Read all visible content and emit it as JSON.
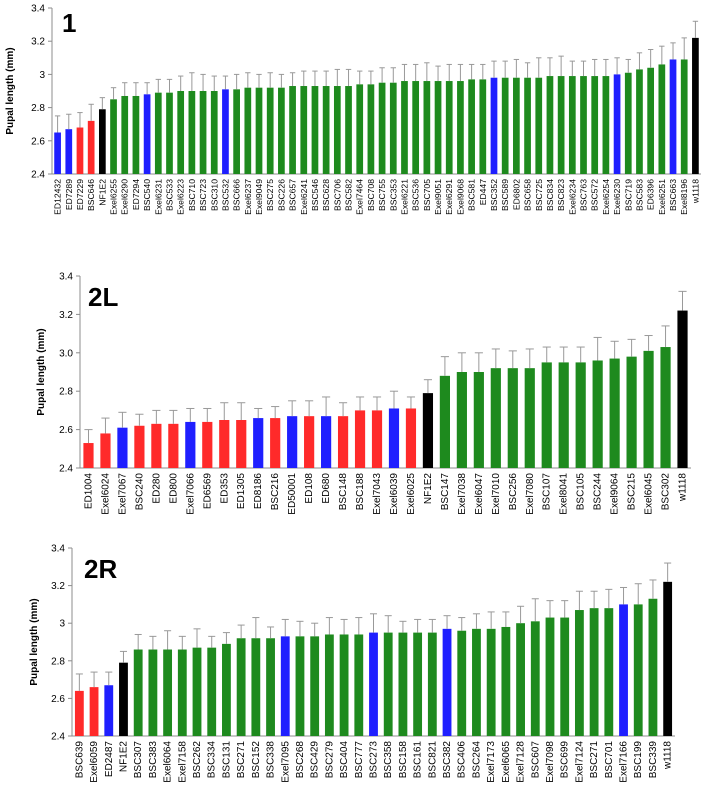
{
  "colors": {
    "red": "#ff2a2a",
    "blue": "#1f1fff",
    "green": "#1e8a1e",
    "black": "#000000",
    "error_bar": "#999999",
    "axis": "#8c8c8c"
  },
  "chart_data": [
    {
      "type": "bar",
      "title": "1",
      "ylabel": "Pupal length (mm)",
      "ylim": [
        2.4,
        3.4
      ],
      "yticks": [
        "2.4",
        "2.6",
        "2.8",
        "3",
        "3.2",
        "3.4"
      ],
      "grid": false,
      "categories": [
        "ED12432",
        "ED7289",
        "ED7229",
        "BSC646",
        "NF1E2",
        "Exel6255",
        "Exel6290",
        "ED7294",
        "BSC540",
        "Exel6231",
        "BSC533",
        "Exel6223",
        "BSC710",
        "BSC723",
        "BSC310",
        "BSC532",
        "BSC666",
        "Exel6237",
        "Exel9049",
        "BSC275",
        "BSC226",
        "BSC657",
        "Exel6241",
        "BSC546",
        "BSC628",
        "BSC706",
        "BSC582",
        "Exel7464",
        "BSC708",
        "BSC755",
        "BSC353",
        "Exel6221",
        "BSC536",
        "BSC705",
        "Exel9051",
        "Exel6291",
        "Exel9068",
        "BSC581",
        "ED447",
        "BSC352",
        "BSC589",
        "ED6802",
        "BSC658",
        "BSC725",
        "BSC834",
        "BSC823",
        "Exel6234",
        "BSC763",
        "BSC572",
        "Exel6254",
        "Exel6230",
        "BSC719",
        "BSC583",
        "ED6396",
        "Exel6251",
        "BSC663",
        "Exel8196",
        "w1118"
      ],
      "values": [
        2.65,
        2.67,
        2.68,
        2.72,
        2.79,
        2.85,
        2.87,
        2.87,
        2.88,
        2.89,
        2.89,
        2.9,
        2.9,
        2.9,
        2.9,
        2.91,
        2.91,
        2.92,
        2.92,
        2.92,
        2.92,
        2.93,
        2.93,
        2.93,
        2.93,
        2.93,
        2.93,
        2.94,
        2.94,
        2.95,
        2.95,
        2.96,
        2.96,
        2.96,
        2.96,
        2.96,
        2.96,
        2.97,
        2.97,
        2.98,
        2.98,
        2.98,
        2.98,
        2.98,
        2.99,
        2.99,
        2.99,
        2.99,
        2.99,
        2.99,
        3.0,
        3.01,
        3.03,
        3.04,
        3.06,
        3.09,
        3.09,
        3.22
      ],
      "errors": [
        0.1,
        0.09,
        0.09,
        0.1,
        0.07,
        0.07,
        0.08,
        0.08,
        0.07,
        0.08,
        0.08,
        0.09,
        0.11,
        0.1,
        0.09,
        0.08,
        0.09,
        0.09,
        0.08,
        0.09,
        0.08,
        0.08,
        0.09,
        0.09,
        0.09,
        0.1,
        0.1,
        0.08,
        0.08,
        0.09,
        0.09,
        0.1,
        0.1,
        0.11,
        0.09,
        0.1,
        0.1,
        0.09,
        0.09,
        0.1,
        0.1,
        0.11,
        0.09,
        0.12,
        0.11,
        0.12,
        0.09,
        0.09,
        0.1,
        0.1,
        0.1,
        0.08,
        0.1,
        0.11,
        0.11,
        0.1,
        0.13,
        0.1
      ],
      "bar_colors": [
        "blue",
        "blue",
        "red",
        "red",
        "black",
        "green",
        "green",
        "green",
        "blue",
        "green",
        "green",
        "green",
        "green",
        "green",
        "green",
        "blue",
        "green",
        "green",
        "green",
        "green",
        "green",
        "green",
        "green",
        "green",
        "green",
        "green",
        "green",
        "green",
        "green",
        "green",
        "green",
        "green",
        "green",
        "green",
        "green",
        "green",
        "green",
        "green",
        "green",
        "blue",
        "green",
        "green",
        "green",
        "green",
        "green",
        "green",
        "green",
        "green",
        "green",
        "green",
        "blue",
        "green",
        "green",
        "green",
        "green",
        "blue",
        "green",
        "black"
      ]
    },
    {
      "type": "bar",
      "title": "2L",
      "ylabel": "Pupal length (mm)",
      "ylim": [
        2.4,
        3.4
      ],
      "yticks": [
        "2.4",
        "2.6",
        "2.8",
        "3.0",
        "3.2",
        "3.4"
      ],
      "grid": false,
      "categories": [
        "ED1004",
        "Exel6024",
        "Exel7067",
        "BSC240",
        "ED280",
        "ED800",
        "Exel7066",
        "ED6569",
        "ED353",
        "ED1305",
        "ED8186",
        "BSC216",
        "ED50001",
        "ED108",
        "ED680",
        "BSC148",
        "BSC188",
        "Exel7043",
        "Exel6039",
        "Exel6025",
        "NF1E2",
        "BSC147",
        "Exel7038",
        "Exel6047",
        "Exel7010",
        "BSC256",
        "Exel7080",
        "BSC107",
        "Exel8041",
        "BSC105",
        "BSC244",
        "Exel9064",
        "BSC215",
        "Exel6045",
        "BSC302",
        "w1118"
      ],
      "values": [
        2.53,
        2.58,
        2.61,
        2.62,
        2.63,
        2.63,
        2.64,
        2.64,
        2.65,
        2.65,
        2.66,
        2.66,
        2.67,
        2.67,
        2.67,
        2.67,
        2.7,
        2.7,
        2.71,
        2.71,
        2.79,
        2.88,
        2.9,
        2.9,
        2.92,
        2.92,
        2.92,
        2.95,
        2.95,
        2.95,
        2.96,
        2.97,
        2.98,
        3.01,
        3.03,
        3.22
      ],
      "errors": [
        0.07,
        0.08,
        0.08,
        0.06,
        0.07,
        0.07,
        0.07,
        0.07,
        0.09,
        0.09,
        0.05,
        0.06,
        0.08,
        0.08,
        0.1,
        0.07,
        0.07,
        0.07,
        0.09,
        0.06,
        0.07,
        0.1,
        0.1,
        0.1,
        0.1,
        0.09,
        0.1,
        0.08,
        0.08,
        0.08,
        0.12,
        0.09,
        0.09,
        0.08,
        0.11,
        0.1
      ],
      "bar_colors": [
        "red",
        "red",
        "blue",
        "red",
        "red",
        "red",
        "blue",
        "red",
        "red",
        "red",
        "blue",
        "red",
        "blue",
        "red",
        "blue",
        "red",
        "red",
        "red",
        "blue",
        "red",
        "black",
        "green",
        "green",
        "green",
        "green",
        "green",
        "green",
        "green",
        "green",
        "green",
        "green",
        "green",
        "green",
        "green",
        "green",
        "black"
      ]
    },
    {
      "type": "bar",
      "title": "2R",
      "ylabel": "Pupal length (mm)",
      "ylim": [
        2.4,
        3.4
      ],
      "yticks": [
        "2.4",
        "2.6",
        "2.8",
        "3",
        "3.2",
        "3.4"
      ],
      "grid": false,
      "categories": [
        "BSC639",
        "Exel6059",
        "ED2487",
        "NF1E2",
        "BSC307",
        "BSC383",
        "Exel6064",
        "Exel7158",
        "BSC262",
        "BSC334",
        "BSC131",
        "BSC271",
        "BSC152",
        "BSC338",
        "Exel7095",
        "BSC268",
        "BSC429",
        "BSC279",
        "BSC404",
        "BSC777",
        "BSC273",
        "BSC358",
        "BSC158",
        "BSC161",
        "BSC821",
        "BSC382",
        "BSC406",
        "BSC264",
        "Exel7173",
        "Exel6065",
        "Exel7128",
        "BSC607",
        "Exel7098",
        "BSC699",
        "Exel7124",
        "BSC271",
        "BSC701",
        "Exel7166",
        "BSC199",
        "BSC339",
        "w1118"
      ],
      "values": [
        2.64,
        2.66,
        2.67,
        2.79,
        2.86,
        2.86,
        2.86,
        2.86,
        2.87,
        2.87,
        2.89,
        2.92,
        2.92,
        2.92,
        2.93,
        2.93,
        2.93,
        2.94,
        2.94,
        2.94,
        2.95,
        2.95,
        2.95,
        2.95,
        2.95,
        2.97,
        2.96,
        2.97,
        2.97,
        2.98,
        3.0,
        3.01,
        3.03,
        3.03,
        3.07,
        3.08,
        3.08,
        3.1,
        3.1,
        3.13,
        3.22
      ],
      "errors": [
        0.09,
        0.08,
        0.07,
        0.06,
        0.08,
        0.07,
        0.1,
        0.07,
        0.1,
        0.06,
        0.06,
        0.07,
        0.11,
        0.06,
        0.09,
        0.08,
        0.07,
        0.09,
        0.08,
        0.09,
        0.1,
        0.09,
        0.06,
        0.07,
        0.07,
        0.07,
        0.07,
        0.08,
        0.09,
        0.08,
        0.09,
        0.12,
        0.09,
        0.09,
        0.1,
        0.09,
        0.1,
        0.09,
        0.11,
        0.1,
        0.1
      ],
      "bar_colors": [
        "red",
        "red",
        "blue",
        "black",
        "green",
        "green",
        "green",
        "green",
        "green",
        "green",
        "green",
        "green",
        "green",
        "green",
        "blue",
        "green",
        "green",
        "green",
        "green",
        "green",
        "blue",
        "green",
        "green",
        "green",
        "green",
        "blue",
        "green",
        "green",
        "green",
        "green",
        "green",
        "green",
        "green",
        "green",
        "green",
        "green",
        "green",
        "blue",
        "green",
        "green",
        "black"
      ]
    }
  ]
}
